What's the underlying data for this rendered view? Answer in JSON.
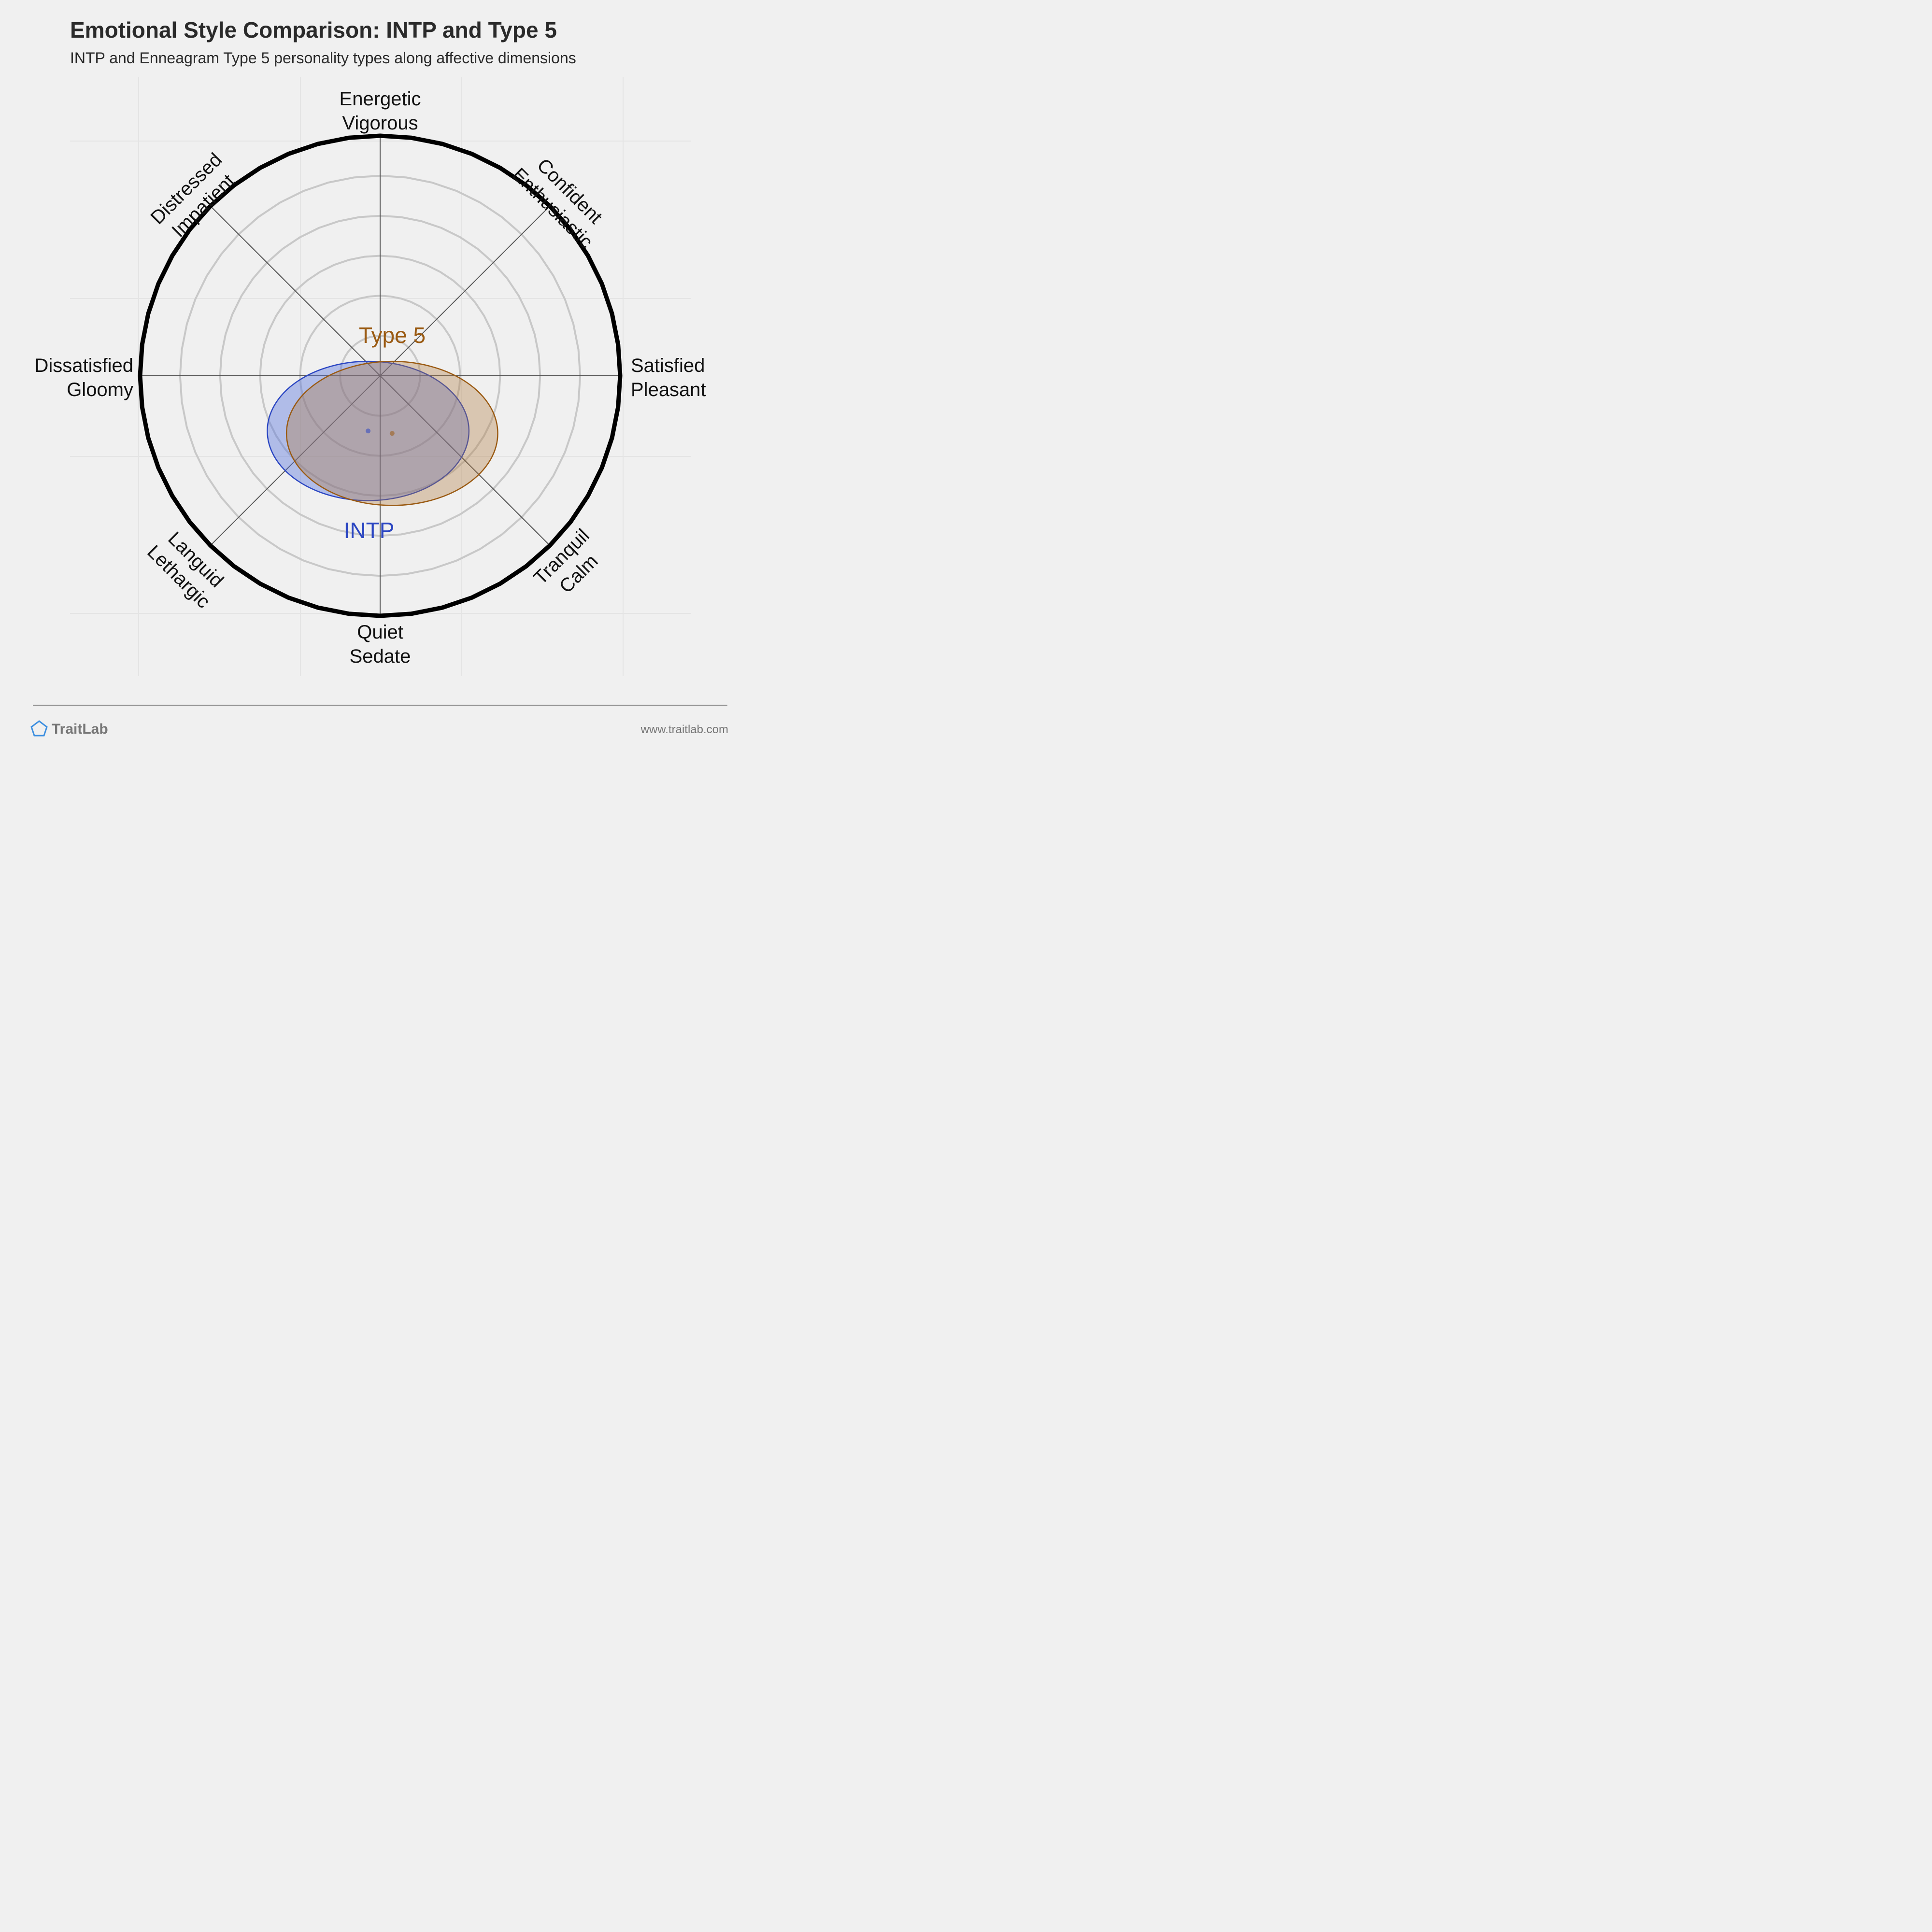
{
  "header": {
    "title": "Emotional Style Comparison: INTP and Type 5",
    "subtitle": "INTP and Enneagram Type 5 personality types along affective dimensions"
  },
  "footer": {
    "brand": "TraitLab",
    "url": "www.traitlab.com",
    "brand_icon": "pentagon-icon"
  },
  "chart_data": {
    "type": "scatter",
    "axes": [
      {
        "id": "top",
        "line1": "Energetic",
        "line2": "Vigorous"
      },
      {
        "id": "top-right",
        "line1": "Confident",
        "line2": "Enthusiastic"
      },
      {
        "id": "right",
        "line1": "Satisfied",
        "line2": "Pleasant"
      },
      {
        "id": "bottom-right",
        "line1": "Tranquil",
        "line2": "Calm"
      },
      {
        "id": "bottom",
        "line1": "Quiet",
        "line2": "Sedate"
      },
      {
        "id": "bottom-left",
        "line1": "Languid",
        "line2": "Lethargic"
      },
      {
        "id": "left",
        "line1": "Dissatisfied",
        "line2": "Gloomy"
      },
      {
        "id": "top-left",
        "line1": "Distressed",
        "line2": "Impatient"
      }
    ],
    "x_range": [
      -1,
      1
    ],
    "y_range": [
      -1,
      1
    ],
    "series": [
      {
        "name": "INTP",
        "color": "#2b46c2",
        "fill": "rgba(80,110,220,0.40)",
        "x": -0.05,
        "y": -0.23,
        "sx": 0.42,
        "sy": 0.29
      },
      {
        "name": "Type 5",
        "color": "#9a5a12",
        "fill": "rgba(176,120,60,0.35)",
        "x": 0.05,
        "y": -0.24,
        "sx": 0.44,
        "sy": 0.3
      }
    ]
  }
}
